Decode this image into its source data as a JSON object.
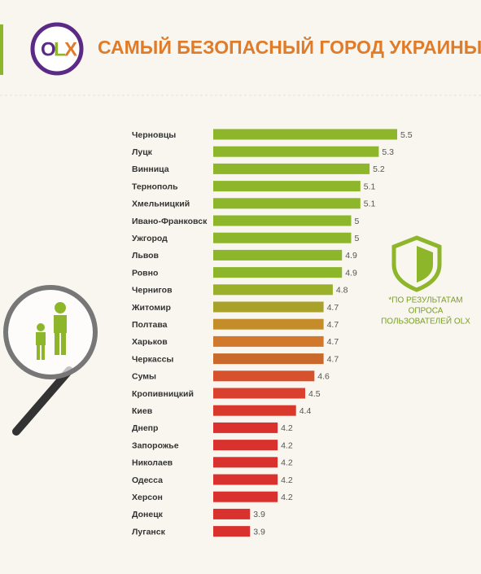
{
  "logo": {
    "letters": [
      "O",
      "L",
      "X"
    ]
  },
  "chart_data": {
    "type": "bar",
    "orientation": "horizontal",
    "title": "САМЫЙ БЕЗОПАСНЫЙ ГОРОД УКРАИНЫ",
    "categories": [
      "Черновцы",
      "Луцк",
      "Винница",
      "Тернополь",
      "Хмельницкий",
      "Ивано-Франковск",
      "Ужгород",
      "Львов",
      "Ровно",
      "Чернигов",
      "Житомир",
      "Полтава",
      "Харьков",
      "Черкассы",
      "Сумы",
      "Кропивницкий",
      "Киев",
      "Днепр",
      "Запорожье",
      "Николаев",
      "Одесса",
      "Херсон",
      "Донецк",
      "Луганск"
    ],
    "values": [
      5.5,
      5.3,
      5.2,
      5.1,
      5.1,
      5,
      5,
      4.9,
      4.9,
      4.8,
      4.7,
      4.7,
      4.7,
      4.7,
      4.6,
      4.5,
      4.4,
      4.2,
      4.2,
      4.2,
      4.2,
      4.2,
      3.9,
      3.9
    ],
    "colors": [
      "#8db62b",
      "#8db62b",
      "#8db62b",
      "#8db62b",
      "#8db62b",
      "#8db62b",
      "#8db62b",
      "#8db62b",
      "#8db62b",
      "#9bb02a",
      "#a9a22a",
      "#c48d2a",
      "#d2782b",
      "#c9692b",
      "#d6512c",
      "#d9402d",
      "#d9382d",
      "#d9322e",
      "#d9322e",
      "#d9322e",
      "#d9322e",
      "#d9322e",
      "#d9322e",
      "#d9322e"
    ],
    "xlim": [
      3.5,
      5.5
    ],
    "note": [
      "*ПО РЕЗУЛЬТАТАМ",
      "ОПРОСА",
      "ПОЛЬЗОВАТЕЛЕЙ OLX"
    ]
  }
}
